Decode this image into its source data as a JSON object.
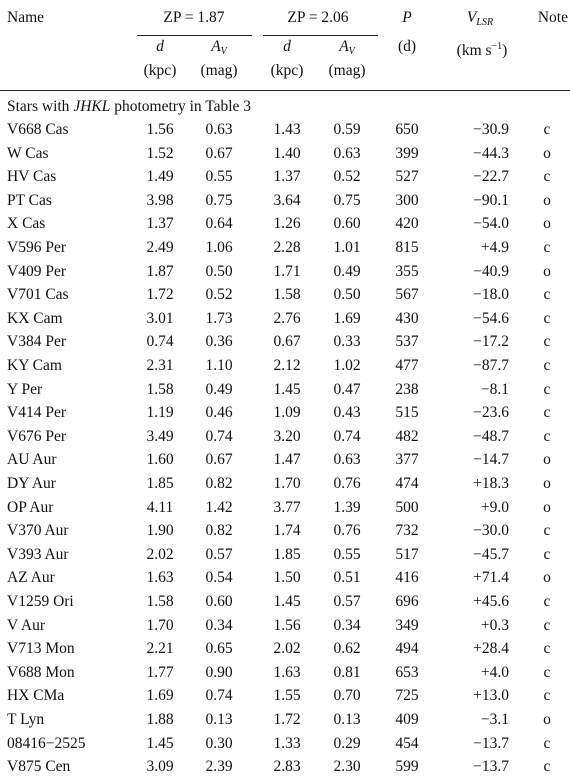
{
  "header": {
    "name": "Name",
    "groups": [
      "ZP = 1.87",
      "ZP = 2.06"
    ],
    "subcols": [
      {
        "symbol": "d",
        "unit": "(kpc)"
      },
      {
        "symbol": "A",
        "subscript": "V",
        "unit": "(mag)"
      },
      {
        "symbol": "d",
        "unit": "(kpc)"
      },
      {
        "symbol": "A",
        "subscript": "V",
        "unit": "(mag)"
      }
    ],
    "period": {
      "symbol": "P",
      "unit": "(d)"
    },
    "velocity": {
      "symbol": "V",
      "subscript": "LSR",
      "unit_prefix": "(km s",
      "unit_sup": "−1",
      "unit_suffix": ")"
    },
    "note": "Note"
  },
  "section": [
    "Stars with ",
    "JHKL",
    " photometry in Table 3"
  ],
  "rows": [
    [
      "V668 Cas",
      "1.56",
      "0.63",
      "1.43",
      "0.59",
      "650",
      "−30.9",
      "c"
    ],
    [
      "W Cas",
      "1.52",
      "0.67",
      "1.40",
      "0.63",
      "399",
      "−44.3",
      "o"
    ],
    [
      "HV Cas",
      "1.49",
      "0.55",
      "1.37",
      "0.52",
      "527",
      "−22.7",
      "c"
    ],
    [
      "PT Cas",
      "3.98",
      "0.75",
      "3.64",
      "0.75",
      "300",
      "−90.1",
      "o"
    ],
    [
      "X Cas",
      "1.37",
      "0.64",
      "1.26",
      "0.60",
      "420",
      "−54.0",
      "o"
    ],
    [
      "V596 Per",
      "2.49",
      "1.06",
      "2.28",
      "1.01",
      "815",
      "+4.9",
      "c"
    ],
    [
      "V409 Per",
      "1.87",
      "0.50",
      "1.71",
      "0.49",
      "355",
      "−40.9",
      "o"
    ],
    [
      "V701 Cas",
      "1.72",
      "0.52",
      "1.58",
      "0.50",
      "567",
      "−18.0",
      "c"
    ],
    [
      "KX Cam",
      "3.01",
      "1.73",
      "2.76",
      "1.69",
      "430",
      "−54.6",
      "c"
    ],
    [
      "V384 Per",
      "0.74",
      "0.36",
      "0.67",
      "0.33",
      "537",
      "−17.2",
      "c"
    ],
    [
      "KY Cam",
      "2.31",
      "1.10",
      "2.12",
      "1.02",
      "477",
      "−87.7",
      "c"
    ],
    [
      "Y Per",
      "1.58",
      "0.49",
      "1.45",
      "0.47",
      "238",
      "−8.1",
      "c"
    ],
    [
      "V414 Per",
      "1.19",
      "0.46",
      "1.09",
      "0.43",
      "515",
      "−23.6",
      "c"
    ],
    [
      "V676 Per",
      "3.49",
      "0.74",
      "3.20",
      "0.74",
      "482",
      "−48.7",
      "c"
    ],
    [
      "AU Aur",
      "1.60",
      "0.67",
      "1.47",
      "0.63",
      "377",
      "−14.7",
      "o"
    ],
    [
      "DY Aur",
      "1.85",
      "0.82",
      "1.70",
      "0.76",
      "474",
      "+18.3",
      "o"
    ],
    [
      "OP Aur",
      "4.11",
      "1.42",
      "3.77",
      "1.39",
      "500",
      "+9.0",
      "o"
    ],
    [
      "V370 Aur",
      "1.90",
      "0.82",
      "1.74",
      "0.76",
      "732",
      "−30.0",
      "c"
    ],
    [
      "V393 Aur",
      "2.02",
      "0.57",
      "1.85",
      "0.55",
      "517",
      "−45.7",
      "c"
    ],
    [
      "AZ Aur",
      "1.63",
      "0.54",
      "1.50",
      "0.51",
      "416",
      "+71.4",
      "o"
    ],
    [
      "V1259 Ori",
      "1.58",
      "0.60",
      "1.45",
      "0.57",
      "696",
      "+45.6",
      "c"
    ],
    [
      "V Aur",
      "1.70",
      "0.34",
      "1.56",
      "0.34",
      "349",
      "+0.3",
      "c"
    ],
    [
      "V713 Mon",
      "2.21",
      "0.65",
      "2.02",
      "0.62",
      "494",
      "+28.4",
      "c"
    ],
    [
      "V688 Mon",
      "1.77",
      "0.90",
      "1.63",
      "0.81",
      "653",
      "+4.0",
      "c"
    ],
    [
      "HX CMa",
      "1.69",
      "0.74",
      "1.55",
      "0.70",
      "725",
      "+13.0",
      "c"
    ],
    [
      "T Lyn",
      "1.88",
      "0.13",
      "1.72",
      "0.13",
      "409",
      "−3.1",
      "o"
    ],
    [
      "08416−2525",
      "1.45",
      "0.30",
      "1.33",
      "0.29",
      "454",
      "−13.7",
      "c"
    ],
    [
      "V875 Cen",
      "3.09",
      "2.39",
      "2.83",
      "2.30",
      "599",
      "−13.7",
      "c"
    ]
  ]
}
